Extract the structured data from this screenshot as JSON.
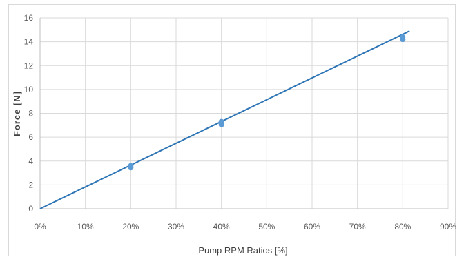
{
  "chart_data": {
    "type": "scatter",
    "title": "",
    "xlabel": "Pump RPM Ratios [%]",
    "ylabel": "Force  [N]",
    "xlim": [
      0,
      90
    ],
    "ylim": [
      0,
      16
    ],
    "x_ticks": [
      "0%",
      "10%",
      "20%",
      "30%",
      "40%",
      "50%",
      "60%",
      "70%",
      "80%",
      "90%"
    ],
    "y_ticks": [
      "0",
      "2",
      "4",
      "6",
      "8",
      "10",
      "12",
      "14",
      "16"
    ],
    "grid": true,
    "legend": "none",
    "series": [
      {
        "points": [
          {
            "x": 20,
            "y": 3.6
          },
          {
            "x": 20,
            "y": 3.45
          },
          {
            "x": 40,
            "y": 7.3
          },
          {
            "x": 40,
            "y": 7.05
          },
          {
            "x": 80,
            "y": 14.4
          },
          {
            "x": 80,
            "y": 14.2
          }
        ],
        "color": "#5b9bd5"
      }
    ],
    "trendline": {
      "type": "linear",
      "x_start": 0,
      "y_start": 0,
      "x_end": 81.5,
      "y_end": 14.9,
      "color": "#2e75b6"
    }
  }
}
